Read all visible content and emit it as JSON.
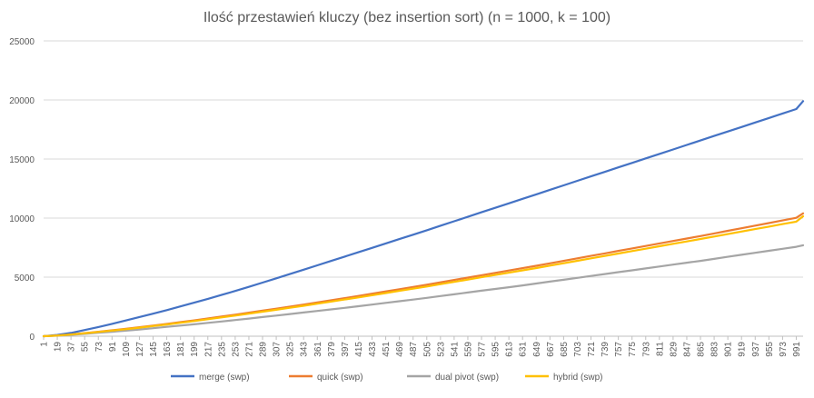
{
  "chart_data": {
    "type": "line",
    "title": "Ilość przestawień kluczy (bez insertion sort) (n = 1000, k = 100)",
    "xlabel": "",
    "ylabel": "",
    "x_start": 1,
    "x_end": 1000,
    "x_step": 1,
    "x_tick_labels": [
      "1",
      "19",
      "37",
      "55",
      "73",
      "91",
      "109",
      "127",
      "145",
      "163",
      "181",
      "199",
      "217",
      "235",
      "253",
      "271",
      "289",
      "307",
      "325",
      "343",
      "361",
      "379",
      "397",
      "415",
      "433",
      "451",
      "469",
      "487",
      "505",
      "523",
      "541",
      "559",
      "577",
      "595",
      "613",
      "631",
      "649",
      "667",
      "685",
      "703",
      "721",
      "739",
      "757",
      "775",
      "793",
      "811",
      "829",
      "847",
      "865",
      "883",
      "901",
      "919",
      "937",
      "955",
      "973",
      "991"
    ],
    "y_ticks": [
      0,
      5000,
      10000,
      15000,
      20000,
      25000
    ],
    "y_tick_labels": [
      "0",
      "5000",
      "10000",
      "15000",
      "20000",
      "25000"
    ],
    "ylim": [
      0,
      25000
    ],
    "grid": "horizontal",
    "legend_position": "bottom",
    "series": [
      {
        "name": "merge (swp)",
        "color": "#4472C4",
        "points": [
          [
            1,
            0
          ],
          [
            19,
            110
          ],
          [
            37,
            280
          ],
          [
            55,
            520
          ],
          [
            73,
            780
          ],
          [
            91,
            1050
          ],
          [
            109,
            1330
          ],
          [
            127,
            1620
          ],
          [
            145,
            1910
          ],
          [
            163,
            2210
          ],
          [
            181,
            2520
          ],
          [
            199,
            2840
          ],
          [
            217,
            3160
          ],
          [
            235,
            3490
          ],
          [
            253,
            3830
          ],
          [
            271,
            4180
          ],
          [
            289,
            4540
          ],
          [
            307,
            4900
          ],
          [
            325,
            5260
          ],
          [
            343,
            5630
          ],
          [
            361,
            6000
          ],
          [
            379,
            6370
          ],
          [
            397,
            6740
          ],
          [
            415,
            7110
          ],
          [
            433,
            7480
          ],
          [
            451,
            7850
          ],
          [
            469,
            8220
          ],
          [
            487,
            8590
          ],
          [
            505,
            8970
          ],
          [
            523,
            9350
          ],
          [
            541,
            9730
          ],
          [
            559,
            10110
          ],
          [
            577,
            10490
          ],
          [
            595,
            10870
          ],
          [
            613,
            11250
          ],
          [
            631,
            11630
          ],
          [
            649,
            12010
          ],
          [
            667,
            12390
          ],
          [
            685,
            12770
          ],
          [
            703,
            13150
          ],
          [
            721,
            13530
          ],
          [
            739,
            13910
          ],
          [
            757,
            14290
          ],
          [
            775,
            14670
          ],
          [
            793,
            15050
          ],
          [
            811,
            15430
          ],
          [
            829,
            15810
          ],
          [
            847,
            16190
          ],
          [
            865,
            16570
          ],
          [
            883,
            16950
          ],
          [
            901,
            17330
          ],
          [
            919,
            17710
          ],
          [
            937,
            18090
          ],
          [
            955,
            18470
          ],
          [
            973,
            18850
          ],
          [
            991,
            19230
          ],
          [
            1000,
            19900
          ]
        ]
      },
      {
        "name": "quick (swp)",
        "color": "#ED7D31",
        "points": [
          [
            1,
            0
          ],
          [
            19,
            60
          ],
          [
            37,
            150
          ],
          [
            55,
            260
          ],
          [
            73,
            380
          ],
          [
            91,
            500
          ],
          [
            109,
            620
          ],
          [
            127,
            760
          ],
          [
            145,
            900
          ],
          [
            163,
            1040
          ],
          [
            181,
            1190
          ],
          [
            199,
            1340
          ],
          [
            217,
            1500
          ],
          [
            235,
            1660
          ],
          [
            253,
            1820
          ],
          [
            271,
            1990
          ],
          [
            289,
            2160
          ],
          [
            307,
            2330
          ],
          [
            325,
            2500
          ],
          [
            343,
            2680
          ],
          [
            361,
            2860
          ],
          [
            379,
            3040
          ],
          [
            397,
            3220
          ],
          [
            415,
            3410
          ],
          [
            433,
            3600
          ],
          [
            451,
            3790
          ],
          [
            469,
            3980
          ],
          [
            487,
            4170
          ],
          [
            505,
            4360
          ],
          [
            523,
            4560
          ],
          [
            541,
            4760
          ],
          [
            559,
            4960
          ],
          [
            577,
            5160
          ],
          [
            595,
            5360
          ],
          [
            613,
            5560
          ],
          [
            631,
            5760
          ],
          [
            649,
            5960
          ],
          [
            667,
            6170
          ],
          [
            685,
            6380
          ],
          [
            703,
            6590
          ],
          [
            721,
            6800
          ],
          [
            739,
            7010
          ],
          [
            757,
            7220
          ],
          [
            775,
            7430
          ],
          [
            793,
            7640
          ],
          [
            811,
            7850
          ],
          [
            829,
            8060
          ],
          [
            847,
            8270
          ],
          [
            865,
            8480
          ],
          [
            883,
            8700
          ],
          [
            901,
            8920
          ],
          [
            919,
            9140
          ],
          [
            937,
            9360
          ],
          [
            955,
            9580
          ],
          [
            973,
            9800
          ],
          [
            991,
            10020
          ],
          [
            1000,
            10400
          ]
        ]
      },
      {
        "name": "dual pivot (swp)",
        "color": "#A5A5A5",
        "points": [
          [
            1,
            0
          ],
          [
            19,
            45
          ],
          [
            37,
            115
          ],
          [
            55,
            200
          ],
          [
            73,
            290
          ],
          [
            91,
            380
          ],
          [
            109,
            470
          ],
          [
            127,
            570
          ],
          [
            145,
            680
          ],
          [
            163,
            790
          ],
          [
            181,
            900
          ],
          [
            199,
            1010
          ],
          [
            217,
            1130
          ],
          [
            235,
            1250
          ],
          [
            253,
            1370
          ],
          [
            271,
            1490
          ],
          [
            289,
            1620
          ],
          [
            307,
            1750
          ],
          [
            325,
            1880
          ],
          [
            343,
            2010
          ],
          [
            361,
            2140
          ],
          [
            379,
            2270
          ],
          [
            397,
            2400
          ],
          [
            415,
            2540
          ],
          [
            433,
            2680
          ],
          [
            451,
            2820
          ],
          [
            469,
            2960
          ],
          [
            487,
            3100
          ],
          [
            505,
            3250
          ],
          [
            523,
            3400
          ],
          [
            541,
            3550
          ],
          [
            559,
            3700
          ],
          [
            577,
            3850
          ],
          [
            595,
            4000
          ],
          [
            613,
            4150
          ],
          [
            631,
            4300
          ],
          [
            649,
            4460
          ],
          [
            667,
            4620
          ],
          [
            685,
            4780
          ],
          [
            703,
            4940
          ],
          [
            721,
            5100
          ],
          [
            739,
            5260
          ],
          [
            757,
            5420
          ],
          [
            775,
            5580
          ],
          [
            793,
            5740
          ],
          [
            811,
            5900
          ],
          [
            829,
            6060
          ],
          [
            847,
            6220
          ],
          [
            865,
            6380
          ],
          [
            883,
            6550
          ],
          [
            901,
            6720
          ],
          [
            919,
            6890
          ],
          [
            937,
            7060
          ],
          [
            955,
            7230
          ],
          [
            973,
            7400
          ],
          [
            991,
            7570
          ],
          [
            1000,
            7700
          ]
        ]
      },
      {
        "name": "hybrid (swp)",
        "color": "#FFC000",
        "points": [
          [
            1,
            0
          ],
          [
            19,
            55
          ],
          [
            37,
            140
          ],
          [
            55,
            245
          ],
          [
            73,
            360
          ],
          [
            91,
            475
          ],
          [
            109,
            595
          ],
          [
            127,
            725
          ],
          [
            145,
            860
          ],
          [
            163,
            995
          ],
          [
            181,
            1140
          ],
          [
            199,
            1285
          ],
          [
            217,
            1440
          ],
          [
            235,
            1595
          ],
          [
            253,
            1750
          ],
          [
            271,
            1910
          ],
          [
            289,
            2075
          ],
          [
            307,
            2240
          ],
          [
            325,
            2405
          ],
          [
            343,
            2580
          ],
          [
            361,
            2755
          ],
          [
            379,
            2930
          ],
          [
            397,
            3105
          ],
          [
            415,
            3285
          ],
          [
            433,
            3470
          ],
          [
            451,
            3655
          ],
          [
            469,
            3840
          ],
          [
            487,
            4025
          ],
          [
            505,
            4210
          ],
          [
            523,
            4405
          ],
          [
            541,
            4600
          ],
          [
            559,
            4795
          ],
          [
            577,
            4990
          ],
          [
            595,
            5185
          ],
          [
            613,
            5380
          ],
          [
            631,
            5575
          ],
          [
            649,
            5770
          ],
          [
            667,
            5975
          ],
          [
            685,
            6180
          ],
          [
            703,
            6385
          ],
          [
            721,
            6590
          ],
          [
            739,
            6795
          ],
          [
            757,
            7000
          ],
          [
            775,
            7205
          ],
          [
            793,
            7410
          ],
          [
            811,
            7615
          ],
          [
            829,
            7820
          ],
          [
            847,
            8025
          ],
          [
            865,
            8230
          ],
          [
            883,
            8440
          ],
          [
            901,
            8650
          ],
          [
            919,
            8860
          ],
          [
            937,
            9070
          ],
          [
            955,
            9280
          ],
          [
            973,
            9490
          ],
          [
            991,
            9700
          ],
          [
            1000,
            10150
          ]
        ]
      }
    ]
  }
}
